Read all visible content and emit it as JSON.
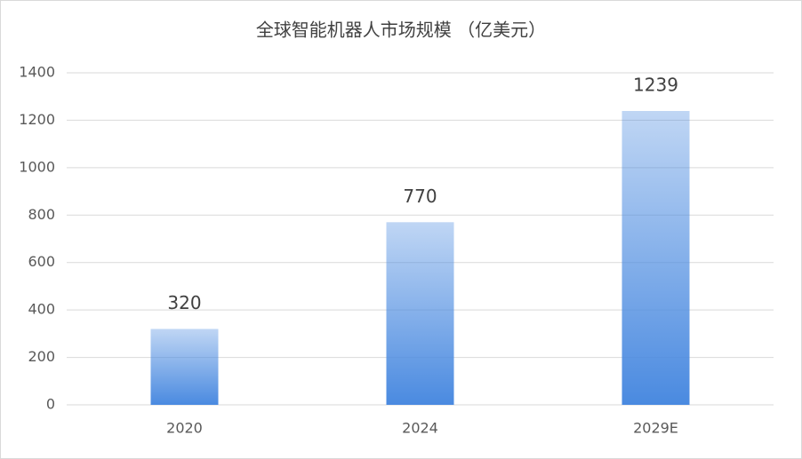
{
  "chart_data": {
    "type": "bar",
    "title": "全球智能机器人市场规模 （亿美元）",
    "categories": [
      "2020",
      "2024",
      "2029E"
    ],
    "values": [
      320,
      770,
      1239
    ],
    "color": "#4a8ae0",
    "ylim": [
      0,
      1400
    ],
    "yticks": [
      0,
      200,
      400,
      600,
      800,
      1000,
      1200,
      1400
    ],
    "grid": true
  }
}
